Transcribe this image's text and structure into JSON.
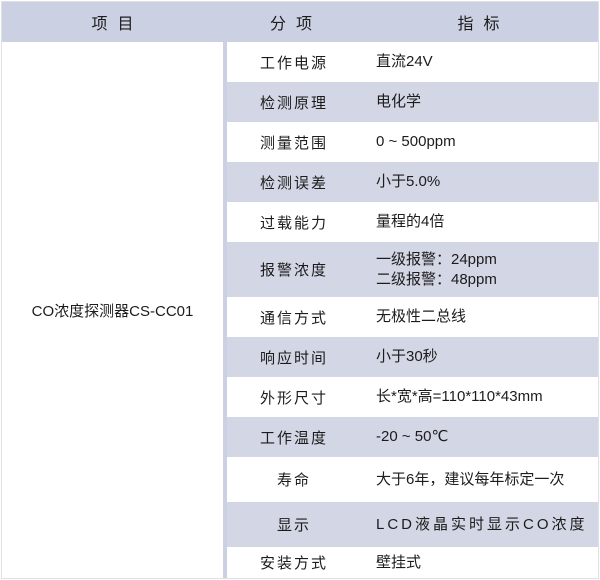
{
  "header": {
    "item": "项目",
    "sub": "分项",
    "spec": "指标"
  },
  "product": {
    "name": "CO浓度探测器CS-CC01"
  },
  "rows": [
    {
      "label": "工作电源",
      "value": "直流24V"
    },
    {
      "label": "检测原理",
      "value": "电化学"
    },
    {
      "label": "测量范围",
      "value": "0 ~ 500ppm"
    },
    {
      "label": "检测误差",
      "value": "小于5.0%"
    },
    {
      "label": "过载能力",
      "value": "量程的4倍"
    },
    {
      "label": "报警浓度",
      "value_lines": [
        "一级报警：24ppm",
        "二级报警：48ppm"
      ]
    },
    {
      "label": "通信方式",
      "value": "无极性二总线"
    },
    {
      "label": "响应时间",
      "value": "小于30秒"
    },
    {
      "label": "外形尺寸",
      "value": "长*宽*高=110*110*43mm"
    },
    {
      "label": "工作温度",
      "value": "-20 ~ 50℃"
    },
    {
      "label": "寿命",
      "value": "大于6年，建议每年标定一次"
    },
    {
      "label": "显示",
      "value": "LCD液晶实时显示CO浓度",
      "spaced": true
    },
    {
      "label": "安装方式",
      "value": "壁挂式"
    }
  ],
  "colors": {
    "header_bg": "#cbd0e2",
    "row_alt_bg": "#d3d6e4",
    "text": "#1c1c1c",
    "border": "#dfe0e5"
  }
}
